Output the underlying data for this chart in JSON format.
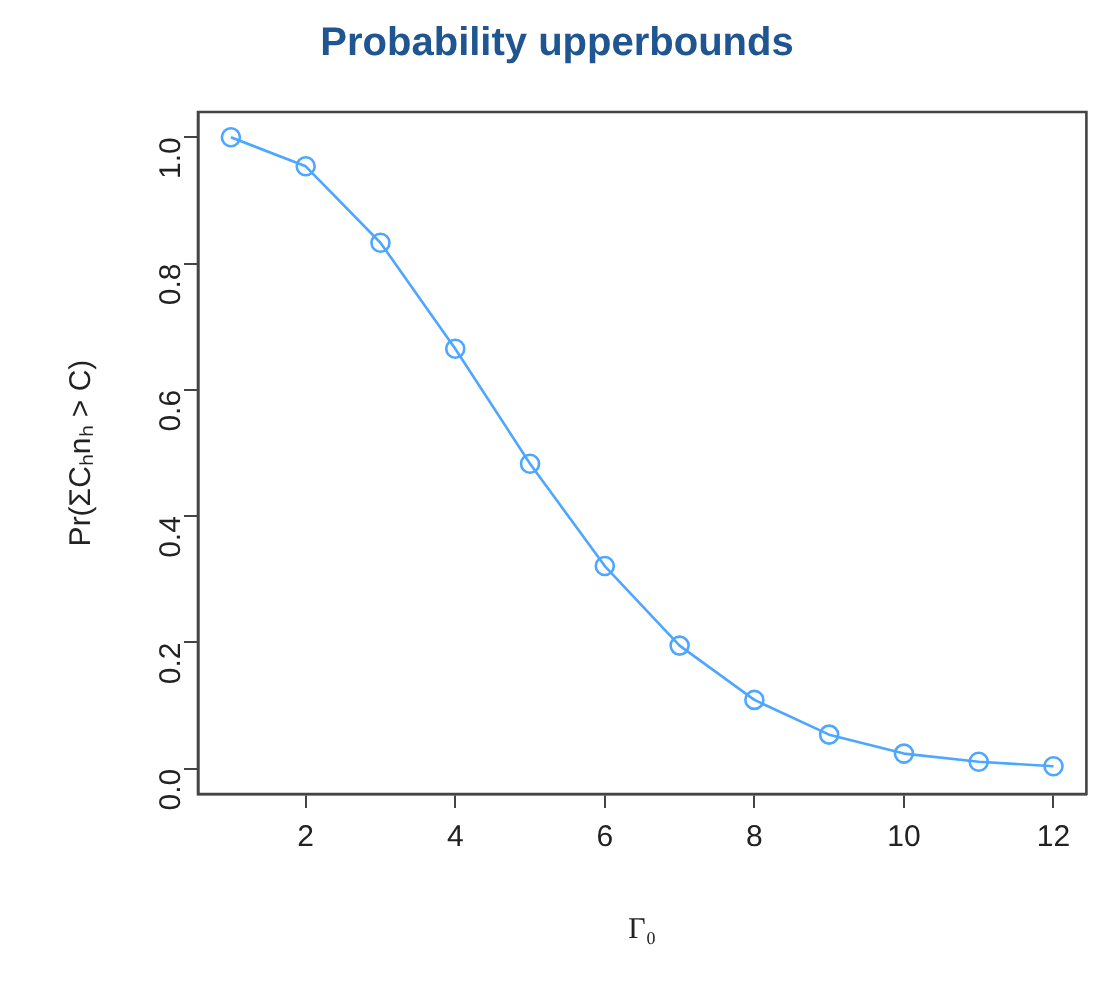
{
  "chart_data": {
    "type": "line",
    "title": "Probability upperbounds",
    "xlabel": "Γ₀",
    "ylabel": "Pr(ΣCₕnₕ > C)",
    "x": [
      1,
      2,
      3,
      4,
      5,
      6,
      7,
      8,
      9,
      10,
      11,
      12
    ],
    "series": [
      {
        "color": "#4da6ff",
        "values": [
          1.0,
          0.954,
          0.833,
          0.665,
          0.483,
          0.321,
          0.195,
          0.109,
          0.054,
          0.024,
          0.011,
          0.004
        ]
      }
    ],
    "xlim": [
      0.56,
      12.44
    ],
    "xticks": [
      2,
      4,
      6,
      8,
      10,
      12
    ],
    "ylim": [
      -0.04,
      1.04
    ],
    "yticks": [
      {
        "value": 0,
        "label": "0.0"
      },
      {
        "value": 0.2,
        "label": "0.2"
      },
      {
        "value": 0.4,
        "label": "0.4"
      },
      {
        "value": 0.6,
        "label": "0.6"
      },
      {
        "value": 0.8,
        "label": "0.8"
      },
      {
        "value": 1,
        "label": "1.0"
      }
    ],
    "grid": false,
    "legend": false,
    "marker": "circle",
    "line_style": "solid"
  }
}
